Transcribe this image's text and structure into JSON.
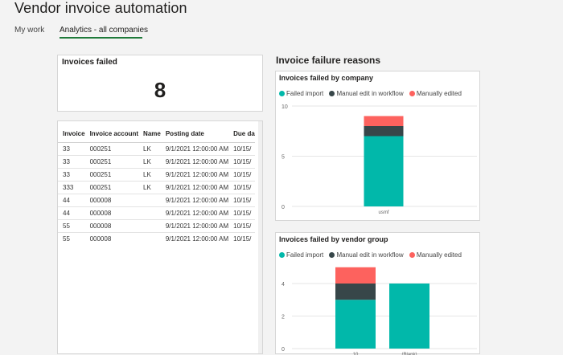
{
  "app": {
    "title": "Vendor invoice automation"
  },
  "tabs": [
    {
      "label": "My work",
      "active": false
    },
    {
      "label": "Analytics - all companies",
      "active": true
    }
  ],
  "kpi": {
    "title": "Invoices failed",
    "value": "8"
  },
  "table": {
    "columns": [
      "Invoice",
      "Invoice account",
      "Name",
      "Posting date",
      "Due da"
    ],
    "rows": [
      [
        "33",
        "000251",
        "LK",
        "9/1/2021 12:00:00 AM",
        "10/15/"
      ],
      [
        "33",
        "000251",
        "LK",
        "9/1/2021 12:00:00 AM",
        "10/15/"
      ],
      [
        "33",
        "000251",
        "LK",
        "9/1/2021 12:00:00 AM",
        "10/15/"
      ],
      [
        "333",
        "000251",
        "LK",
        "9/1/2021 12:00:00 AM",
        "10/15/"
      ],
      [
        "44",
        "000008",
        "",
        "9/1/2021 12:00:00 AM",
        "10/15/"
      ],
      [
        "44",
        "000008",
        "",
        "9/1/2021 12:00:00 AM",
        "10/15/"
      ],
      [
        "55",
        "000008",
        "",
        "9/1/2021 12:00:00 AM",
        "10/15/"
      ],
      [
        "55",
        "000008",
        "",
        "9/1/2021 12:00:00 AM",
        "10/15/"
      ]
    ]
  },
  "section_title": "Invoice failure reasons",
  "colors": {
    "failed_import": "#01b8aa",
    "manual_edit": "#374649",
    "manually_edited": "#fd625e"
  },
  "chart_data": [
    {
      "type": "bar",
      "stacked": true,
      "title": "Invoices failed by company",
      "categories": [
        "usmf"
      ],
      "series": [
        {
          "name": "Failed import",
          "values": [
            7
          ]
        },
        {
          "name": "Manual edit in workflow",
          "values": [
            1
          ]
        },
        {
          "name": "Manually edited",
          "values": [
            1
          ]
        }
      ],
      "yticks": [
        "0",
        "5",
        "10"
      ],
      "ylim": [
        0,
        10
      ],
      "legend": "top-left"
    },
    {
      "type": "bar",
      "stacked": true,
      "title": "Invoices failed by vendor group",
      "categories": [
        "10",
        "(Blank)"
      ],
      "series": [
        {
          "name": "Failed import",
          "values": [
            3,
            4
          ]
        },
        {
          "name": "Manual edit in workflow",
          "values": [
            1,
            0
          ]
        },
        {
          "name": "Manually edited",
          "values": [
            1,
            0
          ]
        }
      ],
      "yticks": [
        "0",
        "2",
        "4"
      ],
      "ylim": [
        0,
        4
      ],
      "legend": "top-left"
    }
  ]
}
